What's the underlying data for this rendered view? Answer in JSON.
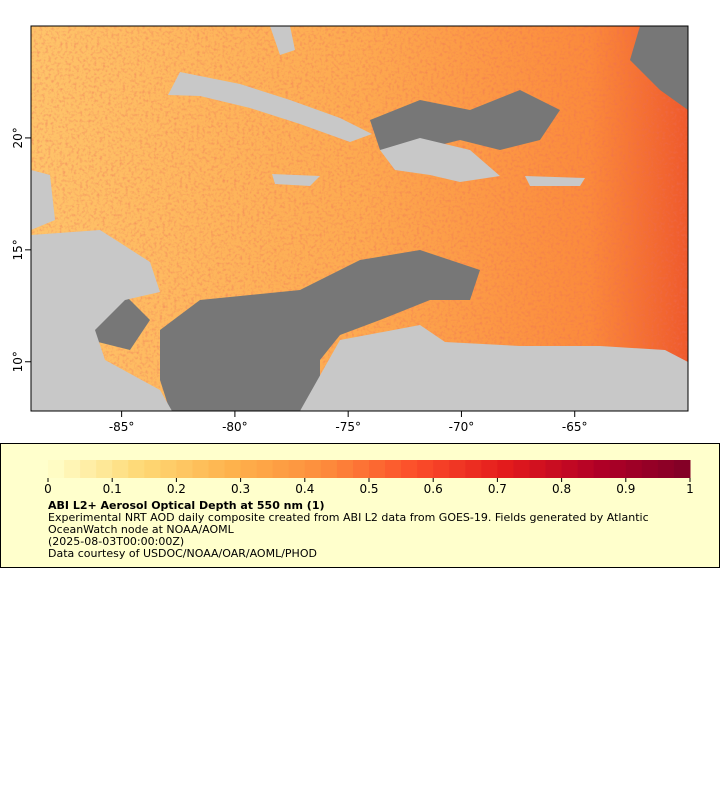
{
  "map": {
    "xlim": [
      -89,
      -60
    ],
    "ylim": [
      7.8,
      25
    ],
    "xticks": [
      {
        "value": -85,
        "label": "-85°"
      },
      {
        "value": -80,
        "label": "-80°"
      },
      {
        "value": -75,
        "label": "-75°"
      },
      {
        "value": -70,
        "label": "-70°"
      },
      {
        "value": -65,
        "label": "-65°"
      }
    ],
    "yticks": [
      {
        "value": 10,
        "label": "10°"
      },
      {
        "value": 15,
        "label": "15°"
      },
      {
        "value": 20,
        "label": "20°"
      }
    ]
  },
  "colorbar": {
    "range": [
      0,
      1
    ],
    "ticks": [
      0,
      0.1,
      0.2,
      0.3,
      0.4,
      0.5,
      0.6,
      0.7,
      0.8,
      0.9,
      1
    ],
    "colors": [
      "#ffffcc",
      "#fed976",
      "#feb24c",
      "#fd8d3c",
      "#fc4e2a",
      "#e31a1c",
      "#b10026",
      "#800026"
    ]
  },
  "legend": {
    "title": "ABI L2+ Aerosol Optical Depth at 550 nm (1)",
    "description": "Experimental NRT AOD daily composite created from ABI L2 data from GOES-19. Fields generated by Atlantic OceanWatch node at NOAA/AOML",
    "time": "(2025-08-03T00:00:00Z)",
    "credit": "Data courtesy of USDOC/NOAA/OAR/AOML/PHOD"
  }
}
